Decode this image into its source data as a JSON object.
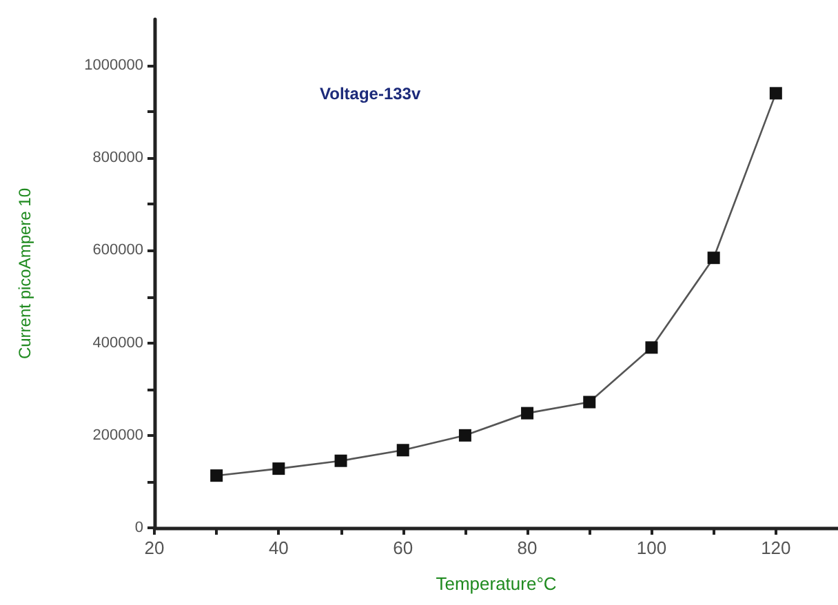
{
  "chart_data": {
    "type": "line",
    "xlabel": "Temperature°C",
    "ylabel": "Current picoAmpere 10",
    "annotations": [
      "Voltage-133v"
    ],
    "x": [
      30,
      40,
      50,
      60,
      70,
      80,
      90,
      100,
      110,
      120
    ],
    "series": [
      {
        "color": "#111111",
        "values": [
          113000,
          128000,
          145000,
          168000,
          200000,
          248000,
          272000,
          390000,
          584000,
          940000
        ]
      }
    ],
    "xlim": [
      20,
      130
    ],
    "xticks": [
      20,
      {
        "value": 30,
        "label": null
      },
      40,
      {
        "value": 50,
        "label": null
      },
      60,
      {
        "value": 70,
        "label": null
      },
      80,
      {
        "value": 90,
        "label": null
      },
      100,
      {
        "value": 110,
        "label": null
      },
      120
    ],
    "ylim": [
      0,
      1100000
    ],
    "yticks": [
      0,
      {
        "value": 100000,
        "label": null
      },
      200000,
      {
        "value": 300000,
        "label": null
      },
      400000,
      {
        "value": 500000,
        "label": null
      },
      600000,
      {
        "value": 700000,
        "label": null
      },
      800000,
      {
        "value": 900000,
        "label": null
      },
      1000000
    ],
    "marker": "square",
    "line_style": "solid"
  }
}
